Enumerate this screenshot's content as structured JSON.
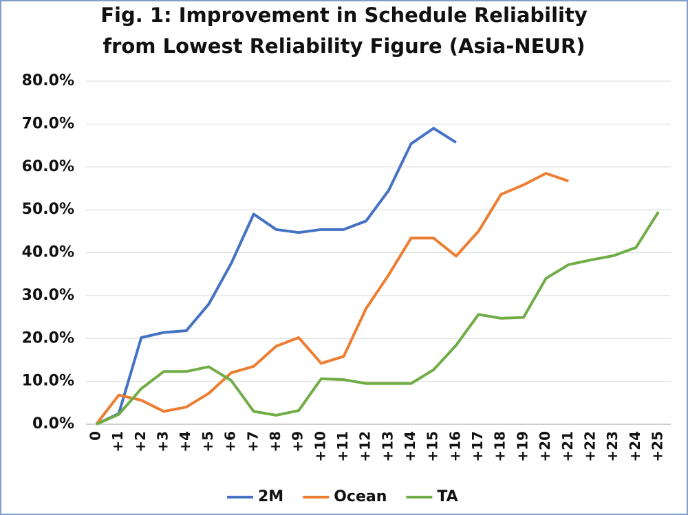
{
  "chart_data": {
    "type": "line",
    "title": [
      "Fig. 1: Improvement in Schedule Reliability",
      "from Lowest Reliability Figure (Asia-NEUR)"
    ],
    "categories": [
      "0",
      "+1",
      "+2",
      "+3",
      "+4",
      "+5",
      "+6",
      "+7",
      "+8",
      "+9",
      "+10",
      "+11",
      "+12",
      "+13",
      "+14",
      "+15",
      "+16",
      "+17",
      "+18",
      "+19",
      "+20",
      "+21",
      "+22",
      "+23",
      "+24",
      "+25"
    ],
    "series": [
      {
        "name": "2M",
        "color": "#4472c4",
        "values": [
          0,
          2.5,
          20.2,
          21.4,
          21.8,
          28,
          37.5,
          49,
          45.4,
          44.7,
          45.4,
          45.4,
          47.4,
          54.5,
          65.4,
          69,
          65.7,
          null,
          null,
          null,
          null,
          null,
          null,
          null,
          null,
          null
        ]
      },
      {
        "name": "Ocean",
        "color": "#ed7d31",
        "values": [
          0,
          6.8,
          5.6,
          3,
          4,
          7.2,
          12,
          13.5,
          18.2,
          20.2,
          14.2,
          15.8,
          27,
          34.8,
          43.4,
          43.4,
          39.2,
          45,
          53.6,
          55.8,
          58.5,
          56.7,
          null,
          null,
          null,
          null
        ]
      },
      {
        "name": "TA",
        "color": "#70ad47",
        "values": [
          0,
          2.3,
          8.3,
          12.3,
          12.3,
          13.4,
          10.2,
          3,
          2.1,
          3.2,
          10.6,
          10.4,
          9.5,
          9.5,
          9.5,
          12.7,
          18.4,
          25.6,
          24.7,
          24.9,
          34,
          37.2,
          38.3,
          39.3,
          41.2,
          49.5
        ]
      }
    ],
    "ylim": [
      0,
      80
    ],
    "yticks": [
      {
        "value": 0,
        "label": "0.0%"
      },
      {
        "value": 10,
        "label": "10.0%"
      },
      {
        "value": 20,
        "label": "20.0%"
      },
      {
        "value": 30,
        "label": "30.0%"
      },
      {
        "value": 40,
        "label": "40.0%"
      },
      {
        "value": 50,
        "label": "50.0%"
      },
      {
        "value": 60,
        "label": "60.0%"
      },
      {
        "value": 70,
        "label": "70.0%"
      },
      {
        "value": 80,
        "label": "80.0%"
      }
    ],
    "grid": true,
    "legend": "bottom"
  }
}
